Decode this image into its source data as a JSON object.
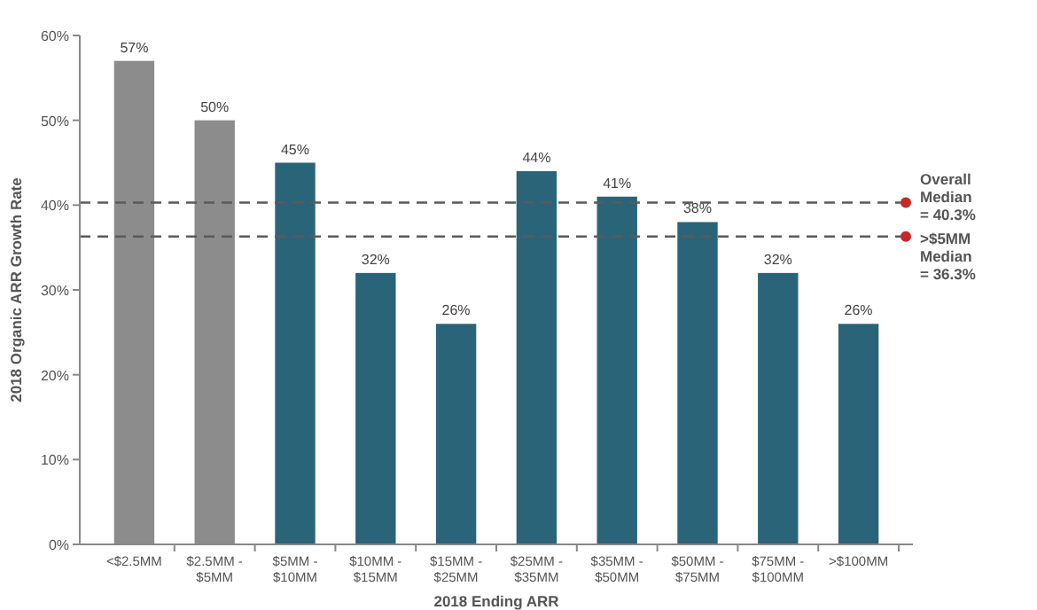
{
  "chart_data": {
    "type": "bar",
    "xlabel": "2018 Ending ARR",
    "ylabel": "2018 Organic ARR Growth Rate",
    "categories": [
      "<$2.5MM",
      "$2.5MM - $5MM",
      "$5MM - $10MM",
      "$10MM - $15MM",
      "$15MM - $25MM",
      "$25MM - $35MM",
      "$35MM - $50MM",
      "$50MM - $75MM",
      "$75MM - $100MM",
      ">$100MM"
    ],
    "values": [
      57,
      50,
      45,
      32,
      26,
      44,
      41,
      38,
      32,
      26
    ],
    "colors": [
      "#8c8c8c",
      "#8c8c8c",
      "#2a6478",
      "#2a6478",
      "#2a6478",
      "#2a6478",
      "#2a6478",
      "#2a6478",
      "#2a6478",
      "#2a6478"
    ],
    "value_labels": [
      "57%",
      "50%",
      "45%",
      "32%",
      "26%",
      "44%",
      "41%",
      "38%",
      "32%",
      "26%"
    ],
    "ylim": [
      0,
      60
    ],
    "yticks": [
      {
        "value": 0,
        "label": "0%"
      },
      {
        "value": 10,
        "label": "10%"
      },
      {
        "value": 20,
        "label": "20%"
      },
      {
        "value": 30,
        "label": "30%"
      },
      {
        "value": 40,
        "label": "40%"
      },
      {
        "value": 50,
        "label": "50%"
      },
      {
        "value": 60,
        "label": "60%"
      }
    ],
    "ref_lines": [
      {
        "axis": "y",
        "value": 40.3,
        "label": "Overall Median = 40.3%",
        "color": "#5a5a5a",
        "line_style": "dashed"
      },
      {
        "axis": "y",
        "value": 36.3,
        "label": ">$5MM Median = 36.3%",
        "color": "#5a5a5a",
        "line_style": "dashed"
      }
    ]
  }
}
